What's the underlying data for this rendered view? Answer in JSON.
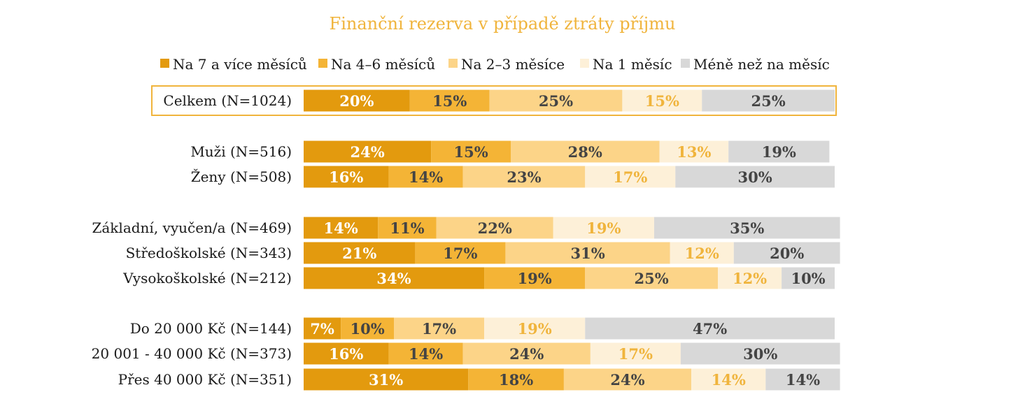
{
  "chart_data": {
    "type": "bar",
    "orientation": "horizontal",
    "stacked": "100%",
    "title": "Finanční rezerva v případě ztráty příjmu",
    "legend_position": "top",
    "grid": false,
    "xlim": [
      0,
      100
    ],
    "unit": "%",
    "categories": [
      "Celkem (N=1024)",
      "Muži (N=516)",
      "Ženy (N=508)",
      "Základní, vyučen/a (N=469)",
      "Středoškolské (N=343)",
      "Vysokoškolské (N=212)",
      "Do 20 000 Kč (N=144)",
      "20 001 - 40 000 Kč (N=373)",
      "Přes 40 000 Kč (N=351)"
    ],
    "groups": [
      [
        0
      ],
      [
        1,
        2
      ],
      [
        3,
        4,
        5
      ],
      [
        6,
        7,
        8
      ]
    ],
    "highlighted_category": 0,
    "series": [
      {
        "name": "Na 7 a více měsíců",
        "color": "#e39a0e",
        "label_color": "#ffffff",
        "values": [
          20,
          24,
          16,
          14,
          21,
          34,
          7,
          16,
          31
        ]
      },
      {
        "name": "Na 4–6 měsíců",
        "color": "#f4b436",
        "label_color": "#444444",
        "values": [
          15,
          15,
          14,
          11,
          17,
          19,
          10,
          14,
          18
        ]
      },
      {
        "name": "Na 2–3 měsíce",
        "color": "#fcd488",
        "label_color": "#444444",
        "values": [
          25,
          28,
          23,
          22,
          31,
          25,
          17,
          24,
          24
        ]
      },
      {
        "name": "Na 1 měsíc",
        "color": "#fdf0d8",
        "label_color": "#f0b43c",
        "values": [
          15,
          13,
          17,
          19,
          12,
          12,
          19,
          17,
          14
        ]
      },
      {
        "name": "Méně než na měsíc",
        "color": "#d8d8d8",
        "label_color": "#444444",
        "values": [
          25,
          19,
          30,
          35,
          20,
          10,
          47,
          30,
          14
        ]
      }
    ]
  }
}
